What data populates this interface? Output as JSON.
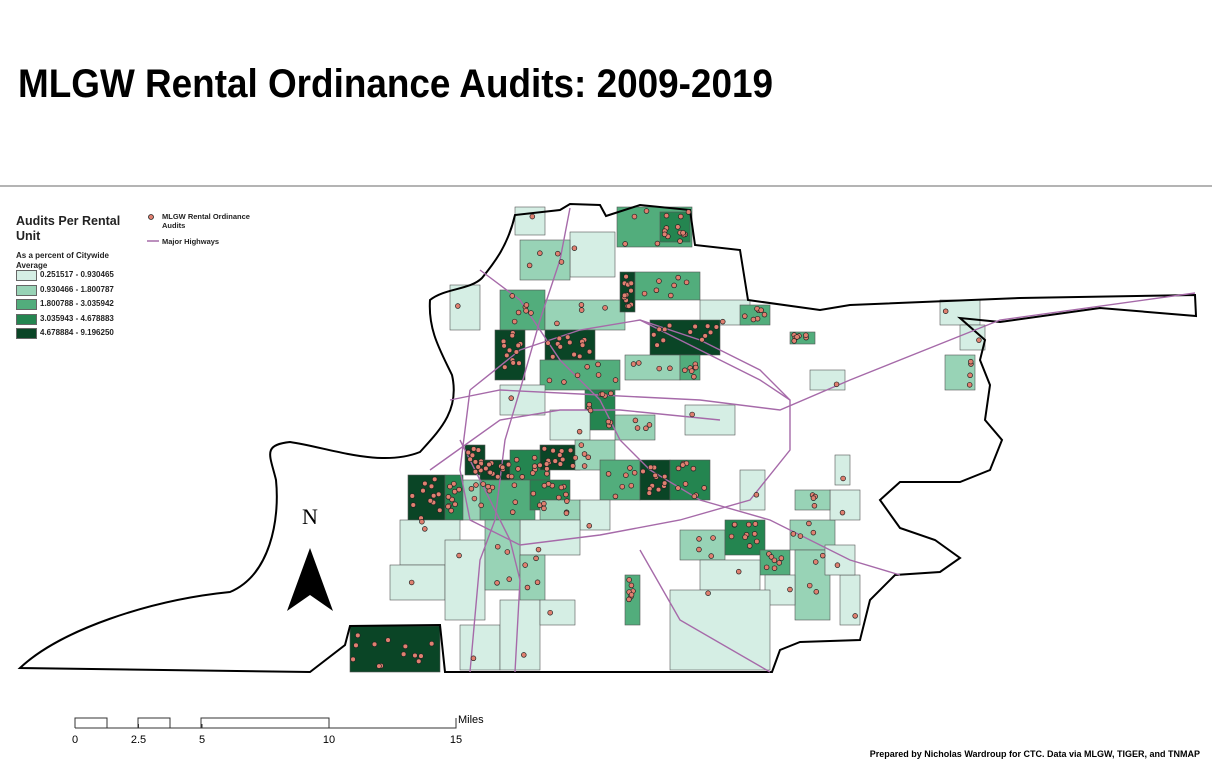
{
  "title": "MLGW Rental Ordinance Audits: 2009-2019",
  "legend": {
    "title": "Audits Per Rental Unit",
    "subtitle": "As a percent of Citywide Average",
    "classes": [
      {
        "label": "0.251517 - 0.930465",
        "color": "#d5eee4"
      },
      {
        "label": "0.930466 - 1.800787",
        "color": "#98d3b6"
      },
      {
        "label": "1.800788 - 3.035942",
        "color": "#52ad7c"
      },
      {
        "label": "3.035943 - 4.678883",
        "color": "#248550"
      },
      {
        "label": "4.678884 - 9.196250",
        "color": "#0a4526"
      }
    ],
    "points": "MLGW Rental Ordinance Audits",
    "highways": "Major Highways"
  },
  "north": "N",
  "scale": {
    "ticks": [
      0,
      2.5,
      5,
      10,
      15
    ],
    "unit": "Miles"
  },
  "credit": "Prepared by Nicholas Wardroup for CTC. Data via MLGW, TIGER, and TNMAP"
}
